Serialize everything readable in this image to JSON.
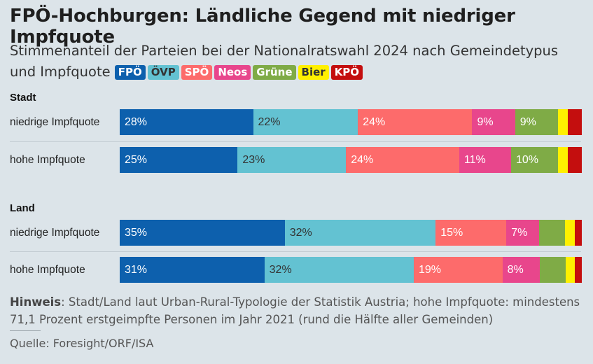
{
  "title": "FPÖ-Hochburgen: Ländliche Gegend mit niedriger Impfquote",
  "subtitle": "Stimmenanteil der Parteien bei der Nationalratswahl 2024 nach Gemeindetypus und Impfquote",
  "legend": [
    {
      "name": "FPÖ",
      "color": "#0d60ad",
      "text_color": "#ffffff"
    },
    {
      "name": "ÖVP",
      "color": "#63c2d2",
      "text_color": "#333333"
    },
    {
      "name": "SPÖ",
      "color": "#fd6b6b",
      "text_color": "#ffffff"
    },
    {
      "name": "Neos",
      "color": "#e8468c",
      "text_color": "#ffffff"
    },
    {
      "name": "Grüne",
      "color": "#7fab46",
      "text_color": "#ffffff"
    },
    {
      "name": "Bier",
      "color": "#fff000",
      "text_color": "#333333"
    },
    {
      "name": "KPÖ",
      "color": "#c40e0e",
      "text_color": "#ffffff"
    }
  ],
  "chart_data": {
    "type": "bar",
    "orientation": "horizontal",
    "stacked": true,
    "unit": "%",
    "xlim": [
      0,
      100
    ],
    "grid": false,
    "legend_placement": "inline-subtitle",
    "series_names": [
      "FPÖ",
      "ÖVP",
      "SPÖ",
      "Neos",
      "Grüne",
      "Bier",
      "KPÖ"
    ],
    "groups": [
      {
        "name": "Stadt",
        "rows": [
          {
            "label": "niedrige Impfquote",
            "values": [
              28,
              22,
              24,
              9,
              9,
              2,
              3
            ],
            "value_labels": [
              "28%",
              "22%",
              "24%",
              "9%",
              "9%",
              "",
              ""
            ]
          },
          {
            "label": "hohe Impfquote",
            "values": [
              25,
              23,
              24,
              11,
              10,
              2,
              3
            ],
            "value_labels": [
              "25%",
              "23%",
              "24%",
              "11%",
              "10%",
              "",
              ""
            ]
          }
        ]
      },
      {
        "name": "Land",
        "rows": [
          {
            "label": "niedrige Impfquote",
            "values": [
              35,
              32,
              15,
              7,
              5.5,
              2,
              1.5
            ],
            "value_labels": [
              "35%",
              "32%",
              "15%",
              "7%",
              "",
              "",
              ""
            ]
          },
          {
            "label": "hohe Impfquote",
            "values": [
              31,
              32,
              19,
              8,
              5.5,
              2,
              1.5
            ],
            "value_labels": [
              "31%",
              "32%",
              "19%",
              "8%",
              "",
              "",
              ""
            ]
          }
        ]
      }
    ]
  },
  "note": {
    "label": "Hinweis",
    "text": ": Stadt/Land laut Urban-Rural-Typologie der Statistik Austria; hohe Impfquote: mindestens 71,1 Prozent erstgeimpfte Personen im Jahr 2021 (rund die Hälfte aller Gemeinden)"
  },
  "source": "Quelle: Foresight/ORF/ISA"
}
